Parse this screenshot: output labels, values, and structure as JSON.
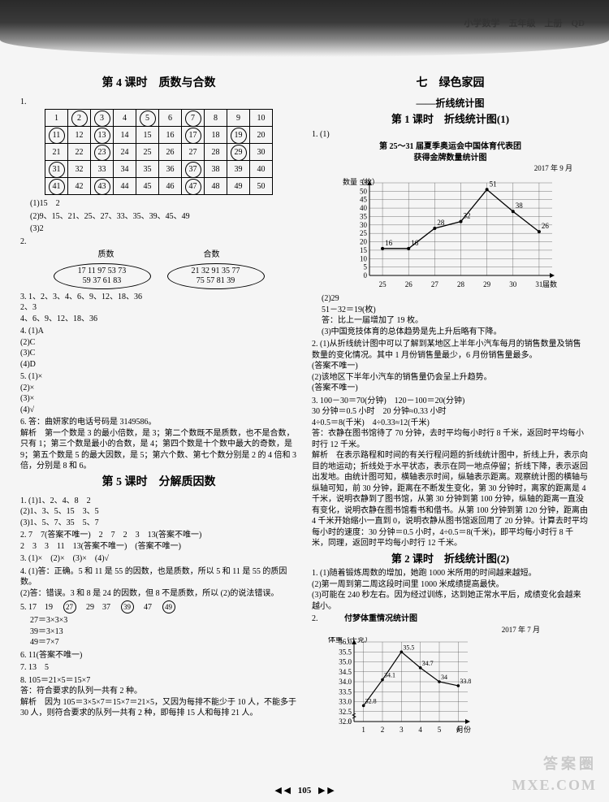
{
  "header": {
    "text": "小学数学　五年级　上册　QD"
  },
  "footer": {
    "page": "105",
    "left_arrows": "◀ ◀",
    "right_arrows": "▶ ▶"
  },
  "watermark": {
    "line1": "答案圈",
    "line2": "MXE.COM"
  },
  "left": {
    "lesson4_title": "第 4 课时　质数与合数",
    "table": {
      "rows": [
        [
          1,
          2,
          3,
          4,
          5,
          6,
          7,
          8,
          9,
          10
        ],
        [
          11,
          12,
          13,
          14,
          15,
          16,
          17,
          18,
          19,
          20
        ],
        [
          21,
          22,
          23,
          24,
          25,
          26,
          27,
          28,
          29,
          30
        ],
        [
          31,
          32,
          33,
          34,
          35,
          36,
          37,
          38,
          39,
          40
        ],
        [
          41,
          42,
          43,
          44,
          45,
          46,
          47,
          48,
          49,
          50
        ]
      ],
      "circled": [
        2,
        3,
        5,
        7,
        11,
        13,
        17,
        19,
        23,
        29,
        31,
        37,
        41,
        43,
        47
      ]
    },
    "q1_sub": {
      "a": "(1)15　2",
      "b": "(2)9、15、21、25、27、33、35、39、45、49",
      "c": "(3)2"
    },
    "q2": {
      "label_prime": "质数",
      "label_composite": "合数",
      "prime_nums": "17 11 97 53 73\n59 37 61 83",
      "composite_nums": "21 32 91 35 77\n75 57 81 39"
    },
    "q3": "3. 1、2、3、4、6、9、12、18、36\n2、3\n4、6、9、12、18、36",
    "q4": "4. (1)A\n(2)C\n(3)C\n(4)D",
    "q5": "5. (1)×\n(2)×\n(3)×\n(4)√",
    "q6": "6. 答：曲妍家的电话号码是 3149586。\n解析　第一个数是 3 的最小倍数，是 3；第二个数既不是质数，也不是合数，只有 1；第三个数是最小的合数，是 4；第四个数是十个数中最大的奇数，是 9；第五个数是 5 的最大因数，是 5；第六个数、第七个数分别是 2 的 4 倍和 3 倍，分别是 8 和 6。",
    "lesson5_title": "第 5 课时　分解质因数",
    "l5_q1": "1. (1)1、2、4、8　2\n(2)1、3、5、15　3、5\n(3)1、5、7、35　5、7",
    "l5_q2": "2. 7　7(答案不唯一)　2　7　2　3　13(答案不唯一)\n2　3　3　11　13(答案不唯一)　(答案不唯一)",
    "l5_q3": "3. (1)×　(2)×　(3)×　(4)√",
    "l5_q4": "4. (1)答：正确。5 和 11 是 55 的因数，也是质数，所以 5 和 11 是 55 的质因数。\n(2)答：错误。3 和 8 是 24 的因数，但 8 不是质数，所以 (2)的说法错误。",
    "l5_q5_pre": "5. 17　19　",
    "l5_q5_c1": "27",
    "l5_q5_mid": "　29　37　",
    "l5_q5_c2": "39",
    "l5_q5_mid2": "　47　",
    "l5_q5_c3": "49",
    "l5_q5_lines": "27＝3×3×3\n39＝3×13\n49＝7×7",
    "l5_q6": "6. 11(答案不唯一)",
    "l5_q7": "7. 13　5",
    "l5_q8": "8. 105＝21×5＝15×7\n答：符合要求的队列一共有 2 种。\n解析　因为 105＝3×5×7＝15×7＝21×5，又因为每排不能少于 10 人，不能多于 30 人，则符合要求的队列一共有 2 种，即每排 15 人和每排 21 人。"
  },
  "right": {
    "unit_title": "七　绿色家园",
    "unit_sub": "——折线统计图",
    "lesson1_title": "第 1 课时　折线统计图(1)",
    "q1_1": "1. (1)",
    "chart1": {
      "title": "第 25～31 届夏季奥运会中国体育代表团\n获得金牌数量统计图",
      "date": "2017 年 9 月",
      "ylabel": "数量（枚）",
      "xlabel": "届数",
      "ylim": [
        0,
        55
      ],
      "ytick_step": 5,
      "x_categories": [
        "25",
        "26",
        "27",
        "28",
        "29",
        "30",
        "31"
      ],
      "values": [
        16,
        16,
        28,
        32,
        51,
        38,
        26
      ],
      "line_color": "#000000",
      "grid_color": "#555555",
      "background_color": "#f5f5f5",
      "font_size": 9
    },
    "q1_2": "(2)29\n51－32＝19(枚)\n答：比上一届增加了 19 枚。\n(3)中国竞技体育的总体趋势是先上升后略有下降。",
    "q2": "2. (1)从折线统计图中可以了解到某地区上半年小汽车每月的销售数量及销售数量的变化情况。其中 1 月份销售量最少，6 月份销售量最多。\n(答案不唯一)\n(2)该地区下半年小汽车的销售量仍会呈上升趋势。\n(答案不唯一)",
    "q3": "3. 100－30＝70(分钟)　120－100＝20(分钟)\n30 分钟＝0.5 小时　20 分钟≈0.33 小时\n4÷0.5＝8(千米)　4÷0.33≈12(千米)\n答：衣静在图书馆待了 70 分钟，去时平均每小时行 8 千米，返回时平均每小时行 12 千米。\n解析　在表示路程和时间的有关行程问题的折线统计图中，折线上升，表示向目的地运动；折线处于水平状态，表示在同一地点停留；折线下降，表示返回出发地。由统计图可知，横轴表示时间，纵轴表示距离。观察统计图的横轴与纵轴可知，前 30 分钟，距离在不断发生变化，第 30 分钟时，离家的距离是 4 千米，说明衣静到了图书馆，从第 30 分钟到第 100 分钟，纵轴的距离一直没有变化，说明衣静在图书馆看书和借书。从第 100 分钟到第 120 分钟，距离由 4 千米开始缩小一直到 0，说明衣静从图书馆返回用了 20 分钟。计算去时平均每小时的速度：30 分钟＝0.5 小时，4÷0.5＝8(千米)，即平均每小时行 8 千米，同理，返回时平均每小时行 12 千米。",
    "lesson2_title": "第 2 课时　折线统计图(2)",
    "l2_q1": "1. (1)随着锻炼周数的增加，她跑 1000 米所用的时间越来越短。\n(2)第一周到第二周这段时间里 1000 米成绩提高最快。\n(3)可能在 240 秒左右。因为经过训练，达到她正常水平后，成绩变化会越来越小。",
    "l2_q2_label": "2.",
    "chart2": {
      "title": "付梦体重情况统计图",
      "date": "2017 年 7 月",
      "ylabel": "体重（千克）",
      "xlabel": "月份",
      "ylim": [
        32,
        36
      ],
      "ytick_step": 0.5,
      "x_categories": [
        "1",
        "2",
        "3",
        "4",
        "5",
        "6"
      ],
      "values": [
        32.8,
        34.1,
        35.5,
        34.7,
        34.0,
        33.8
      ],
      "line_color": "#000000",
      "grid_color": "#555555",
      "background_color": "#f5f5f5",
      "font_size": 9
    }
  }
}
